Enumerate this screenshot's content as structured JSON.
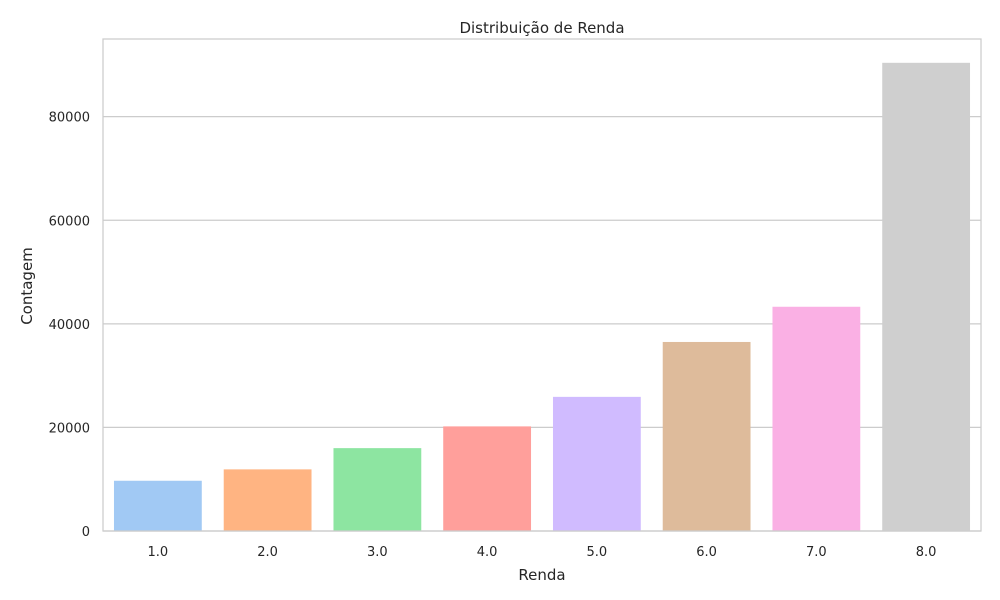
{
  "chart_data": {
    "type": "bar",
    "title": "Distribuição de Renda",
    "xlabel": "Renda",
    "ylabel": "Contagem",
    "categories": [
      "1.0",
      "2.0",
      "3.0",
      "4.0",
      "5.0",
      "6.0",
      "7.0",
      "8.0"
    ],
    "values": [
      9700,
      11900,
      16000,
      20200,
      25900,
      36500,
      43300,
      90400
    ],
    "ylim": [
      0,
      95000
    ],
    "yticks": [
      0,
      20000,
      40000,
      60000,
      80000
    ],
    "ytick_labels": [
      "0",
      "20000",
      "40000",
      "60000",
      "80000"
    ],
    "grid": true,
    "colors": [
      "#a1c9f4",
      "#ffb482",
      "#8de5a1",
      "#ff9f9b",
      "#d0bbff",
      "#debb9b",
      "#fab0e4",
      "#cfcfcf"
    ],
    "grid_color": "#cccccc",
    "frame_color": "#cccccc"
  }
}
